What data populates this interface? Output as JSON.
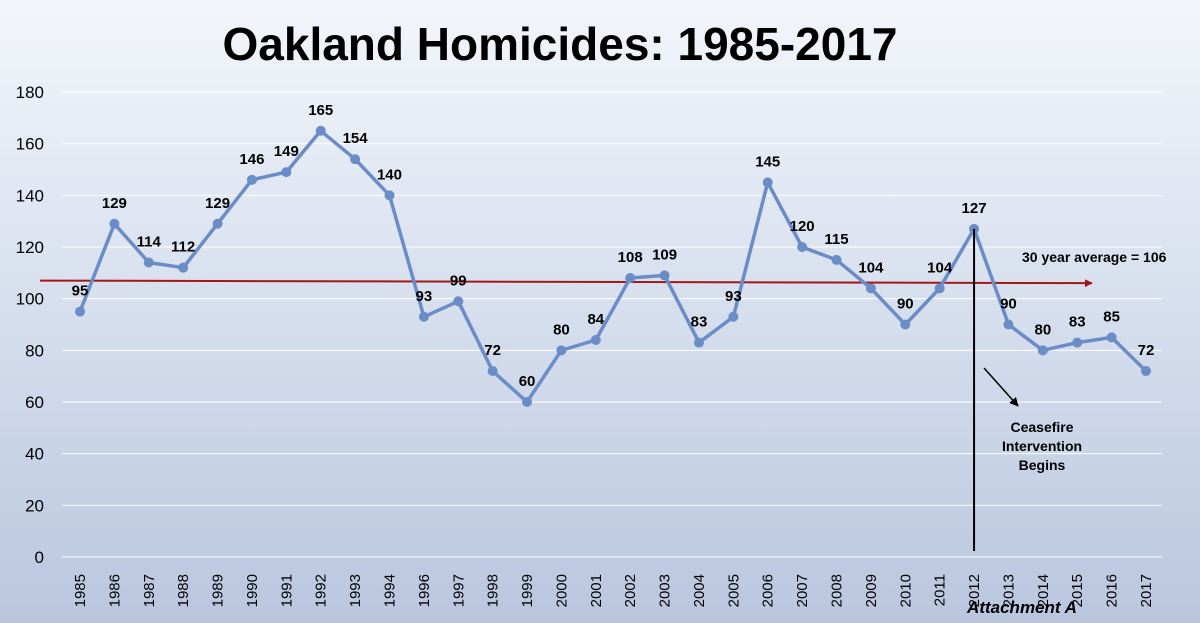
{
  "chart_data": {
    "type": "line",
    "title": "Oakland Homicides: 1985-2017",
    "categories": [
      "1985",
      "1986",
      "1987",
      "1988",
      "1989",
      "1990",
      "1991",
      "1992",
      "1993",
      "1994",
      "1996",
      "1997",
      "1998",
      "1999",
      "2000",
      "2001",
      "2002",
      "2003",
      "2004",
      "2005",
      "2006",
      "2007",
      "2008",
      "2009",
      "2010",
      "2011",
      "2012",
      "2013",
      "2014",
      "2015",
      "2016",
      "2017"
    ],
    "values": [
      95,
      129,
      114,
      112,
      129,
      146,
      149,
      165,
      154,
      140,
      93,
      99,
      72,
      60,
      80,
      84,
      108,
      109,
      83,
      93,
      145,
      120,
      115,
      104,
      90,
      104,
      127,
      90,
      80,
      83,
      85,
      72
    ],
    "ylim": [
      0,
      180
    ],
    "yticks": [
      0,
      20,
      40,
      60,
      80,
      100,
      120,
      140,
      160,
      180
    ],
    "grid": true,
    "series_color": "#6a8cc7",
    "average": {
      "label": "30 year average = 106",
      "start_value": 107,
      "end_value": 106,
      "color": "#a01818"
    },
    "intervention": {
      "category": "2012",
      "lines": [
        "Ceasefire",
        "Intervention",
        "Begins"
      ]
    },
    "footer_note": "Attachment A"
  }
}
